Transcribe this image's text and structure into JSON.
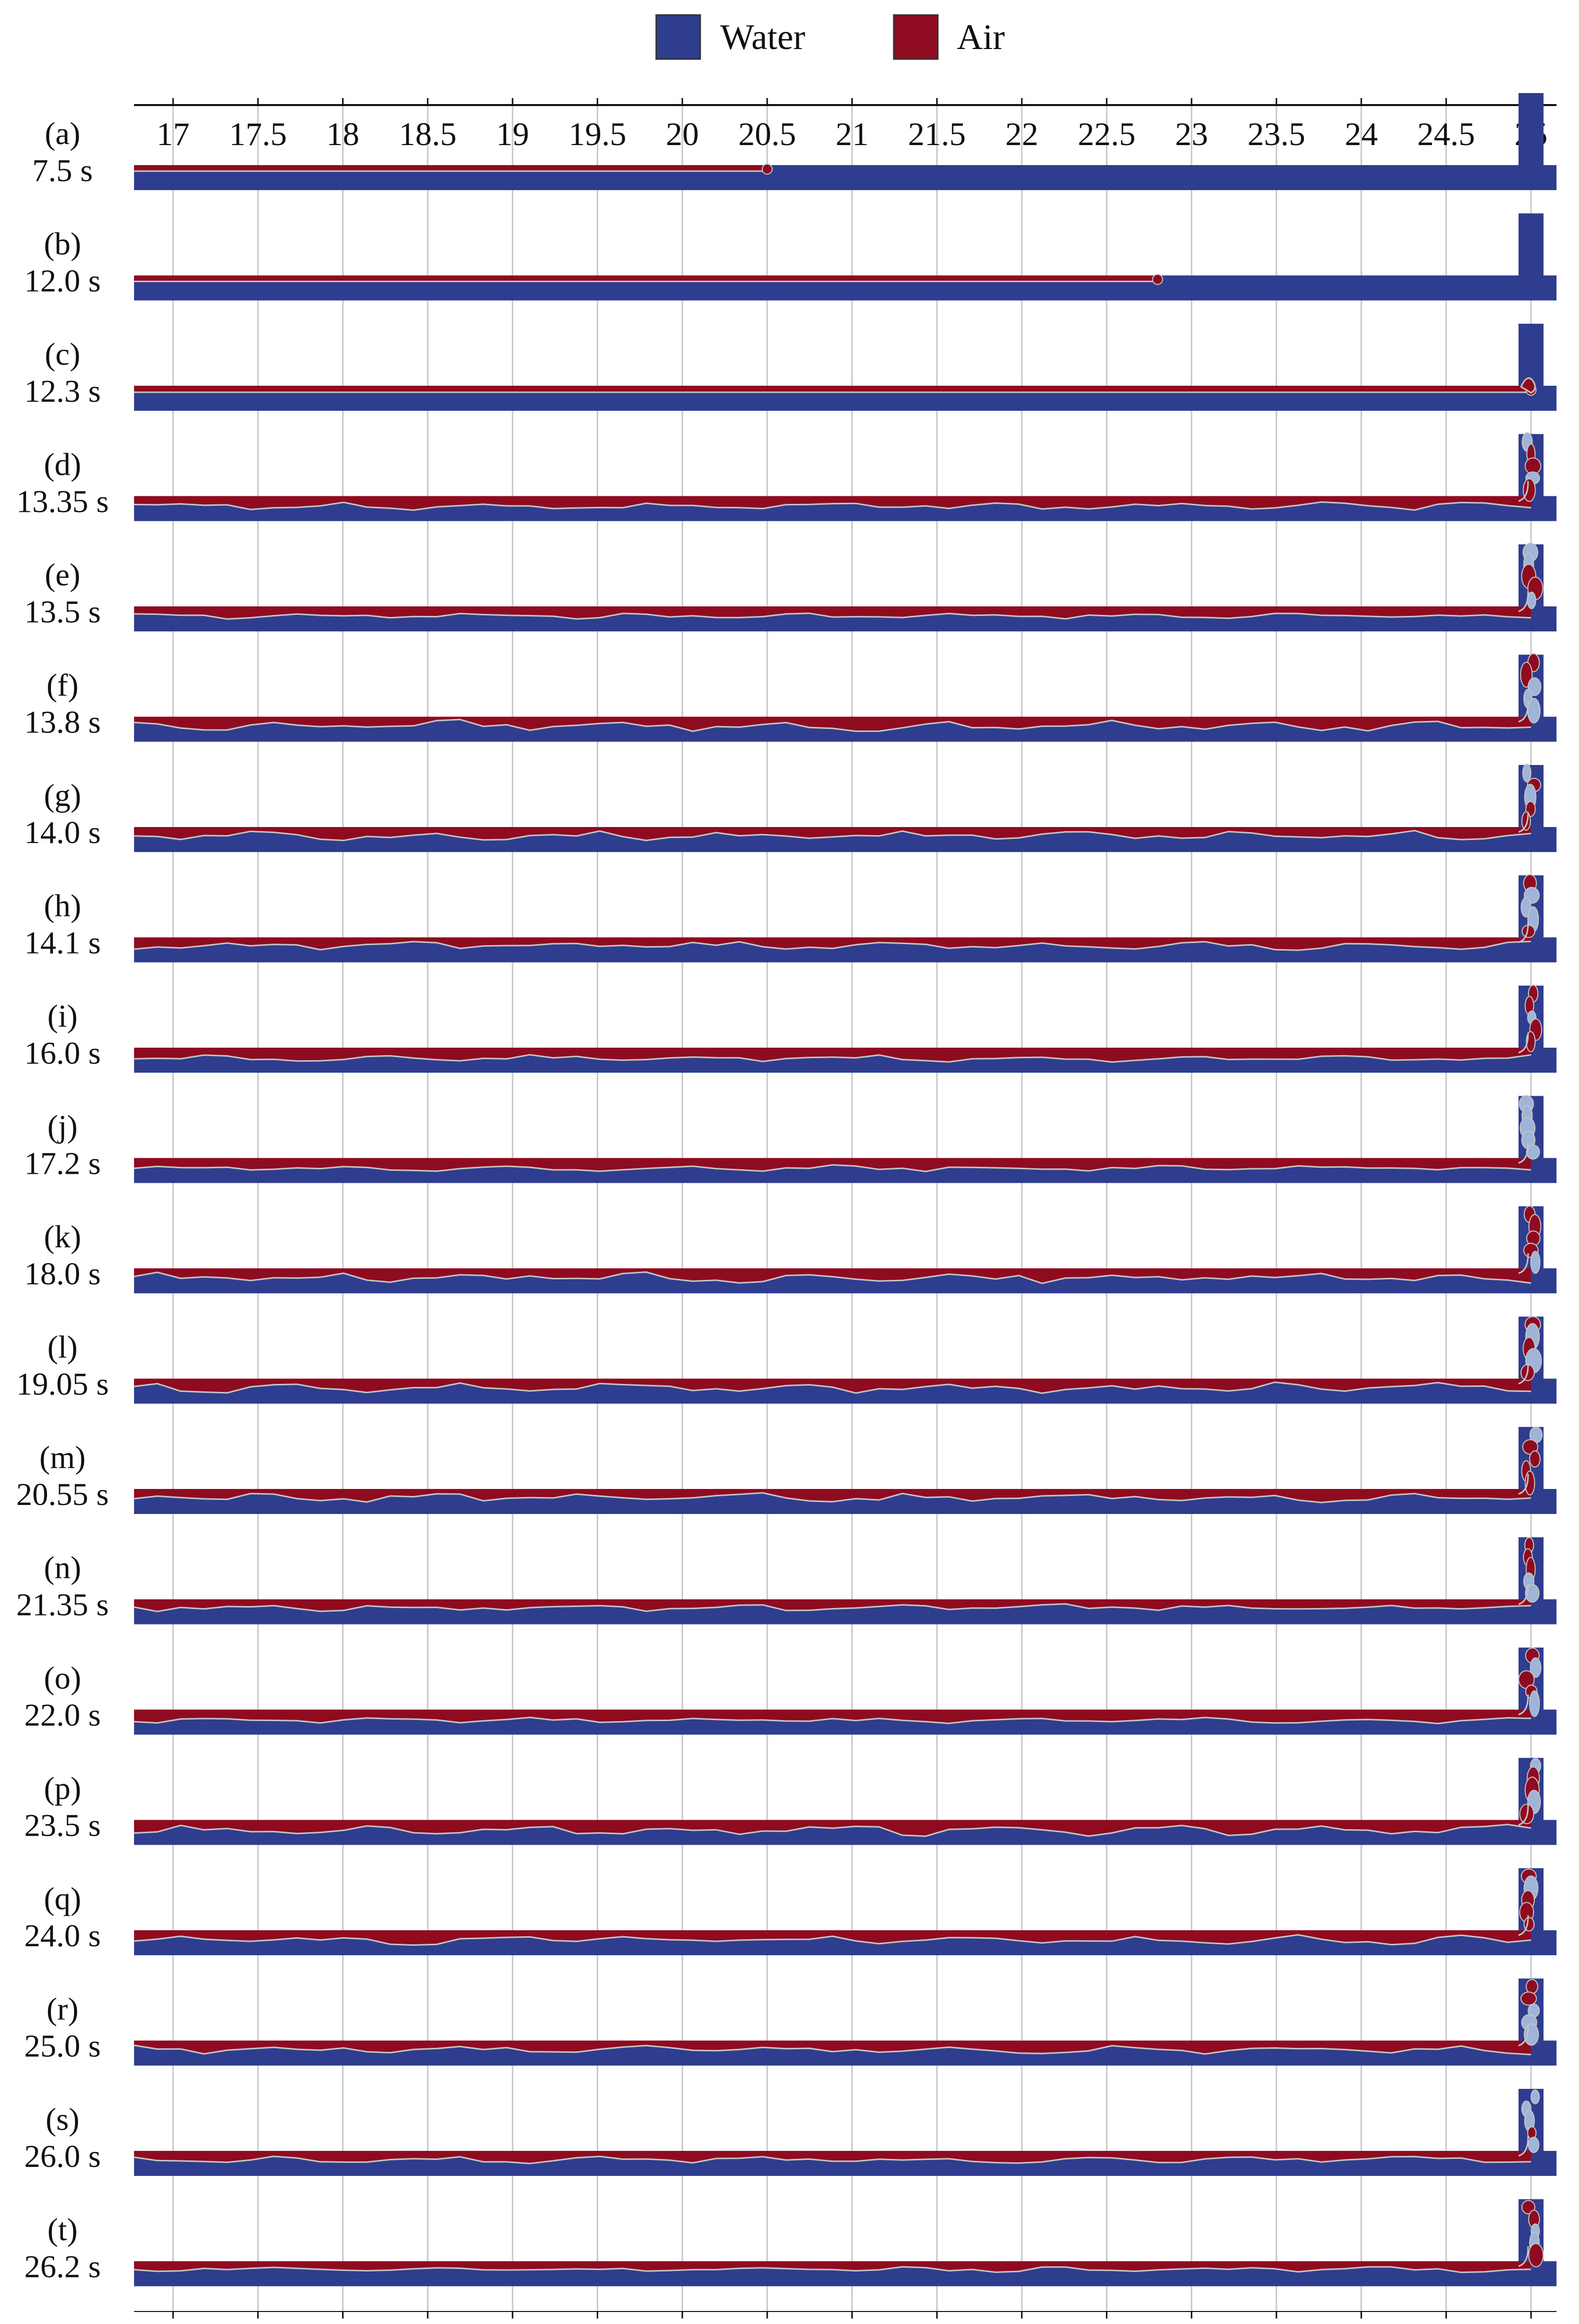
{
  "legend": {
    "water": "Water",
    "air": "Air"
  },
  "colors": {
    "water": "#2f3d8f",
    "air": "#8f0b20",
    "interface": "#c4c4c4",
    "grid": "#c8c8c8",
    "axis": "#111111"
  },
  "axis": {
    "ticks": [
      "17",
      "17.5",
      "18",
      "18.5",
      "19",
      "19.5",
      "20",
      "20.5",
      "21",
      "21.5",
      "22",
      "22.5",
      "23",
      "23.5",
      "24",
      "24.5",
      "25"
    ],
    "tick_values": [
      17,
      17.5,
      18,
      18.5,
      19,
      19.5,
      20,
      20.5,
      21,
      21.5,
      22,
      22.5,
      23,
      23.5,
      24,
      24.5,
      25
    ],
    "range": [
      16.77,
      25.15
    ],
    "pipe_end": 25.15,
    "vertical_branch_center": 25.0
  },
  "rows": [
    {
      "label": "(a)",
      "time": "7.5 s",
      "air_front": 20.5,
      "pattern": "front",
      "branch": "water"
    },
    {
      "label": "(b)",
      "time": "12.0 s",
      "air_front": 22.8,
      "pattern": "front",
      "branch": "water"
    },
    {
      "label": "(c)",
      "time": "12.3 s",
      "air_front": 25.0,
      "pattern": "thin",
      "branch": "water"
    },
    {
      "label": "(d)",
      "time": "13.35 s",
      "air_front": 25.0,
      "pattern": "wavy",
      "branch": "mixed"
    },
    {
      "label": "(e)",
      "time": "13.5 s",
      "air_front": 25.0,
      "pattern": "wavy",
      "branch": "mixed"
    },
    {
      "label": "(f)",
      "time": "13.8 s",
      "air_front": 25.0,
      "pattern": "wavy",
      "branch": "mixed"
    },
    {
      "label": "(g)",
      "time": "14.0 s",
      "air_front": 25.0,
      "pattern": "wavy",
      "branch": "mixed"
    },
    {
      "label": "(h)",
      "time": "14.1 s",
      "air_front": 25.0,
      "pattern": "wavy",
      "branch": "mixed"
    },
    {
      "label": "(i)",
      "time": "16.0 s",
      "air_front": 25.0,
      "pattern": "wavy",
      "branch": "mixed"
    },
    {
      "label": "(j)",
      "time": "17.2 s",
      "air_front": 25.0,
      "pattern": "wavy",
      "branch": "mixed"
    },
    {
      "label": "(k)",
      "time": "18.0 s",
      "air_front": 25.0,
      "pattern": "wavy",
      "branch": "mixed"
    },
    {
      "label": "(l)",
      "time": "19.05 s",
      "air_front": 25.0,
      "pattern": "wavy",
      "branch": "mixed"
    },
    {
      "label": "(m)",
      "time": "20.55 s",
      "air_front": 25.0,
      "pattern": "wavy",
      "branch": "mixed"
    },
    {
      "label": "(n)",
      "time": "21.35 s",
      "air_front": 25.0,
      "pattern": "wavy",
      "branch": "mixed"
    },
    {
      "label": "(o)",
      "time": "22.0 s",
      "air_front": 25.0,
      "pattern": "wavy",
      "branch": "mixed"
    },
    {
      "label": "(p)",
      "time": "23.5 s",
      "air_front": 25.0,
      "pattern": "wavy",
      "branch": "mixed"
    },
    {
      "label": "(q)",
      "time": "24.0 s",
      "air_front": 25.0,
      "pattern": "wavy",
      "branch": "mixed"
    },
    {
      "label": "(r)",
      "time": "25.0 s",
      "air_front": 25.0,
      "pattern": "wavy",
      "branch": "mixed"
    },
    {
      "label": "(s)",
      "time": "26.0 s",
      "air_front": 25.0,
      "pattern": "wavy",
      "branch": "mixed"
    },
    {
      "label": "(t)",
      "time": "26.2 s",
      "air_front": 25.0,
      "pattern": "wavy",
      "branch": "mixed"
    }
  ]
}
